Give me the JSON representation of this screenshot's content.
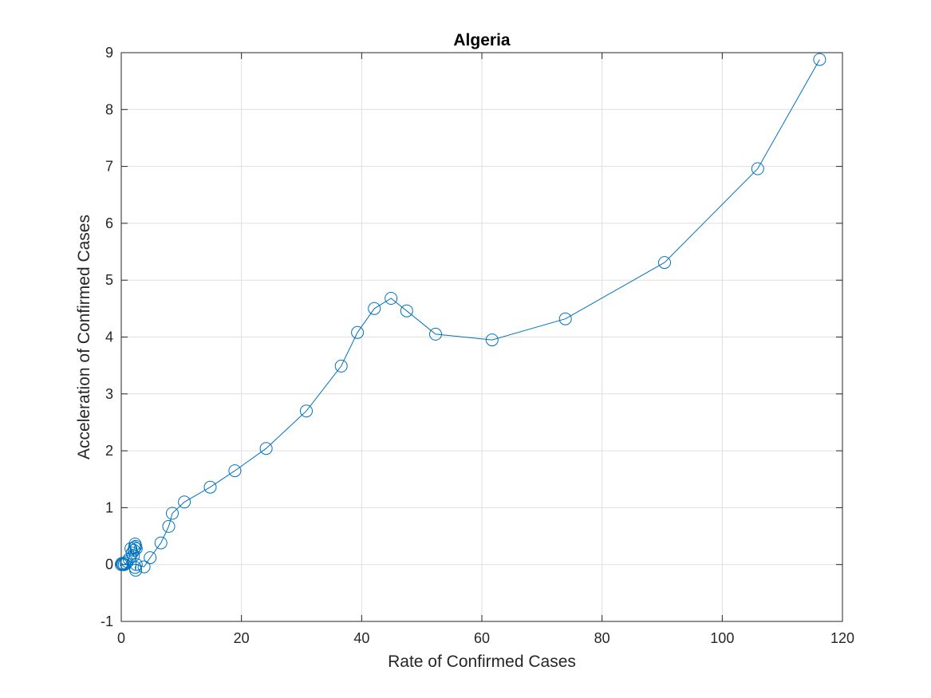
{
  "chart_data": {
    "type": "line",
    "title": "Algeria",
    "xlabel": "Rate of Confirmed Cases",
    "ylabel": "Acceleration of Confirmed Cases",
    "xlim": [
      0,
      120
    ],
    "ylim": [
      -1,
      9
    ],
    "xticks": [
      0,
      20,
      40,
      60,
      80,
      100,
      120
    ],
    "yticks": [
      -1,
      0,
      1,
      2,
      3,
      4,
      5,
      6,
      7,
      8,
      9
    ],
    "xtick_labels": [
      "0",
      "20",
      "40",
      "60",
      "80",
      "100",
      "120"
    ],
    "ytick_labels": [
      "-1",
      "0",
      "1",
      "2",
      "3",
      "4",
      "5",
      "6",
      "7",
      "8",
      "9"
    ],
    "grid": true,
    "marker": "circle-open",
    "color": "#0072BD",
    "series": [
      {
        "x": [
          0.0,
          0.1,
          0.2,
          0.3,
          0.5,
          0.8,
          1.0,
          1.3,
          1.6,
          1.8,
          2.0,
          2.1,
          2.2,
          2.3,
          2.4,
          2.5,
          2.4,
          2.3,
          2.5,
          3.8,
          4.8,
          6.6,
          7.9,
          8.5,
          10.5,
          14.8,
          18.9,
          24.1,
          30.8,
          36.6,
          39.3,
          42.1,
          44.9,
          47.5,
          52.3,
          61.7,
          73.9,
          90.4,
          105.9,
          116.2
        ],
        "y": [
          0.0,
          0.02,
          0.01,
          0.0,
          0.0,
          0.02,
          0.05,
          0.1,
          0.28,
          0.2,
          0.15,
          0.25,
          0.3,
          0.36,
          0.32,
          0.28,
          -0.1,
          -0.05,
          0.0,
          -0.04,
          0.12,
          0.38,
          0.67,
          0.9,
          1.1,
          1.36,
          1.65,
          2.04,
          2.7,
          3.49,
          4.08,
          4.5,
          4.68,
          4.46,
          4.05,
          3.95,
          4.32,
          5.31,
          6.96,
          8.88
        ]
      }
    ]
  }
}
